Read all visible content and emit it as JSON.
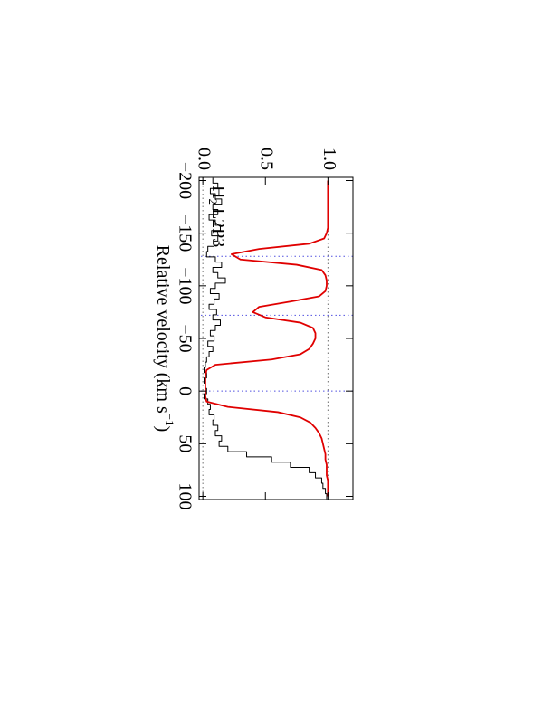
{
  "chart_data": {
    "type": "line",
    "label": {
      "main": "H",
      "sub": "2",
      "rest": "L2P3"
    },
    "xlabel": {
      "main": "Relative velocity (km s",
      "sup": "−1",
      "end": ")"
    },
    "x": [
      -200,
      -195,
      -190,
      -185,
      -180,
      -175,
      -170,
      -165,
      -160,
      -155,
      -150,
      -145,
      -140,
      -135,
      -130,
      -125,
      -120,
      -115,
      -110,
      -105,
      -100,
      -95,
      -90,
      -85,
      -80,
      -75,
      -70,
      -65,
      -60,
      -55,
      -50,
      -45,
      -40,
      -35,
      -30,
      -25,
      -20,
      -15,
      -10,
      -5,
      0,
      5,
      10,
      15,
      20,
      25,
      30,
      35,
      40,
      45,
      50,
      55,
      60,
      65,
      70,
      75,
      80,
      85,
      90,
      95,
      100
    ],
    "series": [
      {
        "color": "#000000",
        "drawstyle": "steps",
        "values": [
          0.08,
          0.12,
          0.06,
          0.1,
          0.15,
          0.08,
          0.12,
          0.05,
          0.1,
          0.14,
          0.07,
          0.12,
          0.09,
          0.04,
          0.03,
          0.1,
          0.15,
          0.08,
          0.12,
          0.18,
          0.1,
          0.06,
          0.13,
          0.09,
          0.05,
          0.11,
          0.08,
          0.14,
          0.1,
          0.06,
          0.09,
          0.04,
          0.08,
          0.05,
          0.03,
          0.02,
          0.01,
          0.03,
          0.01,
          0.02,
          0.03,
          0.01,
          0.04,
          0.06,
          0.05,
          0.09,
          0.08,
          0.12,
          0.1,
          0.15,
          0.13,
          0.2,
          0.35,
          0.55,
          0.7,
          0.85,
          0.9,
          0.95,
          0.96,
          0.98,
          0.99
        ]
      },
      {
        "color": "#e00000",
        "drawstyle": "smooth",
        "values": [
          1,
          1,
          1,
          1,
          1,
          1,
          1,
          1,
          1,
          1,
          0.99,
          0.97,
          0.85,
          0.45,
          0.23,
          0.3,
          0.75,
          0.95,
          0.98,
          0.99,
          0.99,
          0.98,
          0.93,
          0.7,
          0.45,
          0.4,
          0.5,
          0.78,
          0.88,
          0.9,
          0.9,
          0.88,
          0.85,
          0.78,
          0.55,
          0.1,
          0.03,
          0.02,
          0.02,
          0.02,
          0.02,
          0.02,
          0.03,
          0.2,
          0.6,
          0.78,
          0.86,
          0.9,
          0.93,
          0.95,
          0.96,
          0.97,
          0.98,
          0.98,
          0.99,
          0.99,
          0.99,
          1,
          1,
          1,
          1
        ]
      }
    ],
    "vlines": [
      -128,
      -72,
      0
    ],
    "vline_color": "#5050e0",
    "hlines": [
      0,
      1
    ],
    "hline_color": "#707070",
    "xlim": [
      -203,
      103
    ],
    "ylim": [
      -0.03,
      1.2
    ],
    "xticks": [
      {
        "value": -200,
        "label": "−200"
      },
      {
        "value": -150,
        "label": "−150"
      },
      {
        "value": -100,
        "label": "−100"
      },
      {
        "value": -50,
        "label": "−50"
      },
      0,
      50,
      100
    ],
    "yticks": [
      {
        "value": 0,
        "label": "0.0"
      },
      0.5,
      {
        "value": 1,
        "label": "1.0"
      }
    ],
    "rotation": 90
  }
}
